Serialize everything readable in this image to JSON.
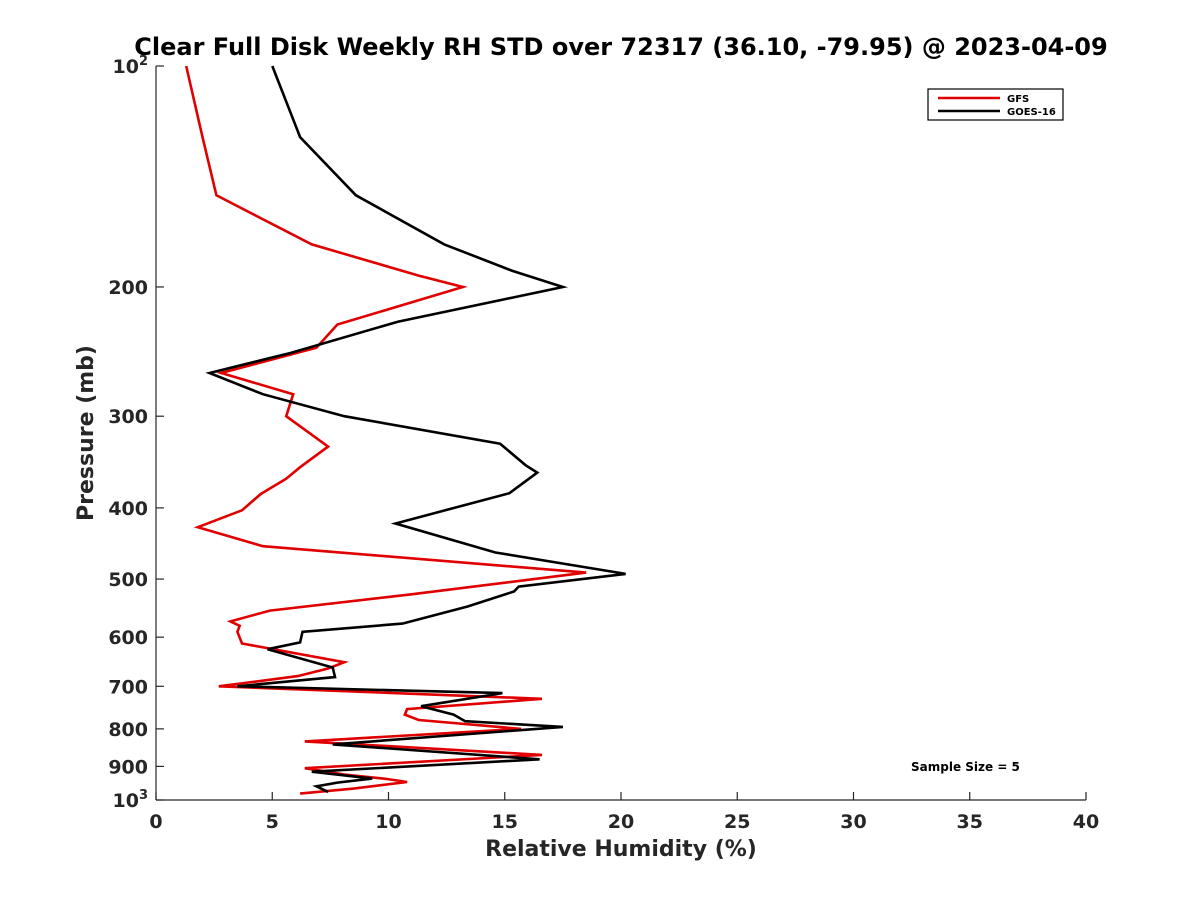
{
  "chart_data": {
    "type": "line",
    "title": "Clear Full Disk Weekly RH STD over 72317 (36.10, -79.95) @ 2023-04-09",
    "xlabel": "Relative Humidity (%)",
    "ylabel": "Pressure (mb)",
    "xlim": [
      0,
      40
    ],
    "ylim": [
      100,
      1000
    ],
    "y_scale": "log",
    "y_reversed": true,
    "grid": false,
    "legend_position": "top-right",
    "x_ticks": [
      0,
      5,
      10,
      15,
      20,
      25,
      30,
      35,
      40
    ],
    "x_tick_labels": [
      "0",
      "5",
      "10",
      "15",
      "20",
      "25",
      "30",
      "35",
      "40"
    ],
    "y_tick_labels": [
      {
        "value": 100,
        "base": "10",
        "exp": "2"
      },
      {
        "value": 200,
        "base": "200",
        "exp": ""
      },
      {
        "value": 300,
        "base": "300",
        "exp": ""
      },
      {
        "value": 400,
        "base": "400",
        "exp": ""
      },
      {
        "value": 500,
        "base": "500",
        "exp": ""
      },
      {
        "value": 600,
        "base": "600",
        "exp": ""
      },
      {
        "value": 700,
        "base": "700",
        "exp": ""
      },
      {
        "value": 800,
        "base": "800",
        "exp": ""
      },
      {
        "value": 900,
        "base": "900",
        "exp": ""
      },
      {
        "value": 1000,
        "base": "10",
        "exp": "3"
      }
    ],
    "annotation": "Sample Size = 5",
    "series": [
      {
        "name": "GFS",
        "color": "#e00000",
        "points": [
          [
            1.3,
            100
          ],
          [
            2.0,
            125
          ],
          [
            2.6,
            150
          ],
          [
            6.7,
            175
          ],
          [
            11.3,
            193
          ],
          [
            13.2,
            200
          ],
          [
            7.8,
            225
          ],
          [
            6.9,
            242
          ],
          [
            2.8,
            262
          ],
          [
            5.9,
            280
          ],
          [
            5.6,
            300
          ],
          [
            7.4,
            330
          ],
          [
            6.2,
            352
          ],
          [
            5.6,
            365
          ],
          [
            4.5,
            383
          ],
          [
            3.7,
            403
          ],
          [
            1.8,
            425
          ],
          [
            4.6,
            451
          ],
          [
            18.5,
            490
          ],
          [
            10.9,
            525
          ],
          [
            4.9,
            552
          ],
          [
            3.2,
            571
          ],
          [
            3.6,
            579
          ],
          [
            3.5,
            590
          ],
          [
            3.7,
            612
          ],
          [
            8.1,
            649
          ],
          [
            7.4,
            662
          ],
          [
            6.1,
            678
          ],
          [
            2.7,
            700
          ],
          [
            16.6,
            728
          ],
          [
            10.8,
            752
          ],
          [
            10.7,
            765
          ],
          [
            11.3,
            778
          ],
          [
            15.7,
            800
          ],
          [
            6.4,
            832
          ],
          [
            16.6,
            868
          ],
          [
            6.4,
            905
          ],
          [
            8.1,
            923
          ],
          [
            9.9,
            936
          ],
          [
            10.8,
            945
          ],
          [
            8.5,
            965
          ],
          [
            6.2,
            980
          ]
        ]
      },
      {
        "name": "GOES-16",
        "color": "#000000",
        "points": [
          [
            5.0,
            100
          ],
          [
            6.2,
            125
          ],
          [
            8.6,
            150
          ],
          [
            12.4,
            175
          ],
          [
            15.3,
            190
          ],
          [
            17.5,
            200
          ],
          [
            10.4,
            223
          ],
          [
            5.8,
            246
          ],
          [
            2.3,
            262
          ],
          [
            4.6,
            280
          ],
          [
            8.1,
            300
          ],
          [
            14.8,
            327
          ],
          [
            15.9,
            350
          ],
          [
            16.4,
            358
          ],
          [
            15.2,
            382
          ],
          [
            10.3,
            420
          ],
          [
            14.6,
            460
          ],
          [
            20.2,
            492
          ],
          [
            15.6,
            512
          ],
          [
            15.4,
            520
          ],
          [
            13.4,
            545
          ],
          [
            10.6,
            575
          ],
          [
            6.3,
            590
          ],
          [
            6.2,
            610
          ],
          [
            4.8,
            623
          ],
          [
            7.6,
            660
          ],
          [
            7.7,
            680
          ],
          [
            3.5,
            700
          ],
          [
            14.9,
            715
          ],
          [
            11.4,
            745
          ],
          [
            12.8,
            765
          ],
          [
            13.3,
            781
          ],
          [
            17.5,
            795
          ],
          [
            7.6,
            840
          ],
          [
            16.5,
            880
          ],
          [
            6.7,
            915
          ],
          [
            9.3,
            935
          ],
          [
            7.8,
            947
          ],
          [
            6.9,
            958
          ],
          [
            7.4,
            975
          ]
        ]
      }
    ]
  }
}
